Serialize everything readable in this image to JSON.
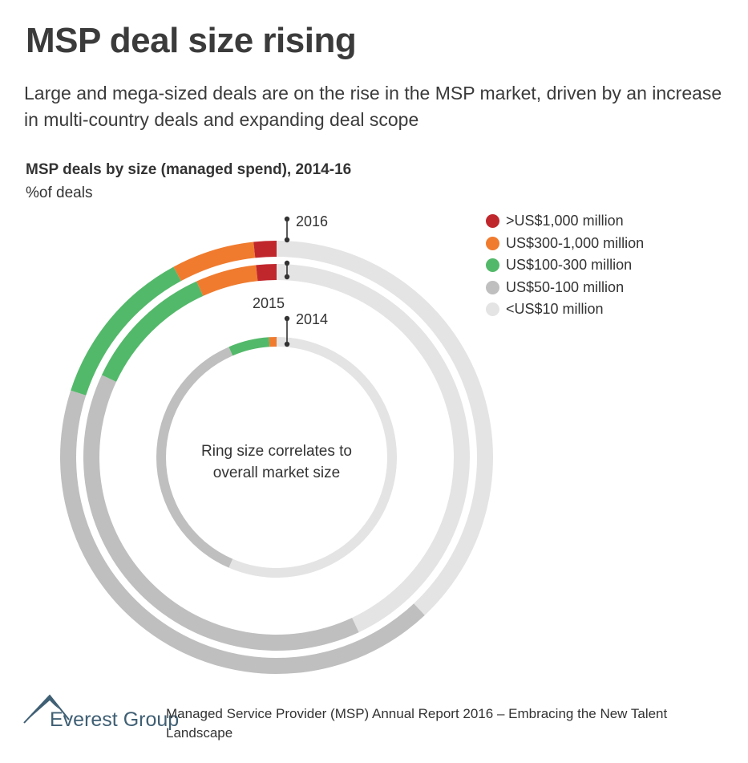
{
  "header": {
    "title": "MSP deal size rising",
    "subtitle": "Large and mega-sized deals are on the rise in the MSP market, driven by an increase in multi-country deals and expanding deal scope"
  },
  "chart_data": {
    "type": "donut",
    "title": "MSP deals by size (managed spend), 2014-16",
    "unit_label": "%of deals",
    "center_note": [
      "Ring size correlates to",
      "overall market size"
    ],
    "legend": [
      {
        "label": ">US$1,000 million",
        "color": "#c0272d"
      },
      {
        "label": "US$300-1,000 million",
        "color": "#f07b2e"
      },
      {
        "label": "US$100-300 million",
        "color": "#53b96a"
      },
      {
        "label": "US$50-100 million",
        "color": "#bfbfbf"
      },
      {
        "label": "<US$10 million",
        "color": "#e4e4e4"
      }
    ],
    "series": [
      {
        "name": "2016",
        "values": [
          1.7,
          6.2,
          12.1,
          42.0,
          38.0
        ]
      },
      {
        "name": "2015",
        "values": [
          1.7,
          5.1,
          11.2,
          39.0,
          43.0
        ]
      },
      {
        "name": "2014",
        "values": [
          0,
          1.0,
          5.5,
          37.0,
          56.5
        ]
      }
    ]
  },
  "footer": {
    "logo_text": "Everest Group",
    "source": "Managed Service Provider (MSP) Annual Report 2016 – Embracing the New Talent Landscape"
  }
}
